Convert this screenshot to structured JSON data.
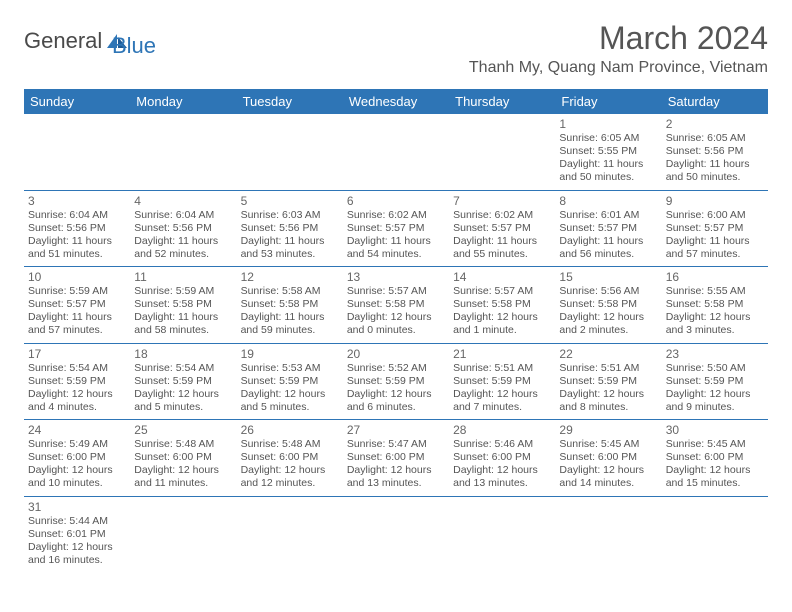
{
  "logo": {
    "general": "General",
    "blue": "Blue"
  },
  "title": "March 2024",
  "location": "Thanh My, Quang Nam Province, Vietnam",
  "colors": {
    "header_bg": "#2e75b6",
    "header_text": "#ffffff",
    "border": "#2e75b6",
    "text": "#555555",
    "logo_blue": "#2e75b6",
    "logo_gray": "#4a4a4a"
  },
  "day_headers": [
    "Sunday",
    "Monday",
    "Tuesday",
    "Wednesday",
    "Thursday",
    "Friday",
    "Saturday"
  ],
  "weeks": [
    [
      null,
      null,
      null,
      null,
      null,
      {
        "n": "1",
        "sr": "Sunrise: 6:05 AM",
        "ss": "Sunset: 5:55 PM",
        "d1": "Daylight: 11 hours",
        "d2": "and 50 minutes."
      },
      {
        "n": "2",
        "sr": "Sunrise: 6:05 AM",
        "ss": "Sunset: 5:56 PM",
        "d1": "Daylight: 11 hours",
        "d2": "and 50 minutes."
      }
    ],
    [
      {
        "n": "3",
        "sr": "Sunrise: 6:04 AM",
        "ss": "Sunset: 5:56 PM",
        "d1": "Daylight: 11 hours",
        "d2": "and 51 minutes."
      },
      {
        "n": "4",
        "sr": "Sunrise: 6:04 AM",
        "ss": "Sunset: 5:56 PM",
        "d1": "Daylight: 11 hours",
        "d2": "and 52 minutes."
      },
      {
        "n": "5",
        "sr": "Sunrise: 6:03 AM",
        "ss": "Sunset: 5:56 PM",
        "d1": "Daylight: 11 hours",
        "d2": "and 53 minutes."
      },
      {
        "n": "6",
        "sr": "Sunrise: 6:02 AM",
        "ss": "Sunset: 5:57 PM",
        "d1": "Daylight: 11 hours",
        "d2": "and 54 minutes."
      },
      {
        "n": "7",
        "sr": "Sunrise: 6:02 AM",
        "ss": "Sunset: 5:57 PM",
        "d1": "Daylight: 11 hours",
        "d2": "and 55 minutes."
      },
      {
        "n": "8",
        "sr": "Sunrise: 6:01 AM",
        "ss": "Sunset: 5:57 PM",
        "d1": "Daylight: 11 hours",
        "d2": "and 56 minutes."
      },
      {
        "n": "9",
        "sr": "Sunrise: 6:00 AM",
        "ss": "Sunset: 5:57 PM",
        "d1": "Daylight: 11 hours",
        "d2": "and 57 minutes."
      }
    ],
    [
      {
        "n": "10",
        "sr": "Sunrise: 5:59 AM",
        "ss": "Sunset: 5:57 PM",
        "d1": "Daylight: 11 hours",
        "d2": "and 57 minutes."
      },
      {
        "n": "11",
        "sr": "Sunrise: 5:59 AM",
        "ss": "Sunset: 5:58 PM",
        "d1": "Daylight: 11 hours",
        "d2": "and 58 minutes."
      },
      {
        "n": "12",
        "sr": "Sunrise: 5:58 AM",
        "ss": "Sunset: 5:58 PM",
        "d1": "Daylight: 11 hours",
        "d2": "and 59 minutes."
      },
      {
        "n": "13",
        "sr": "Sunrise: 5:57 AM",
        "ss": "Sunset: 5:58 PM",
        "d1": "Daylight: 12 hours",
        "d2": "and 0 minutes."
      },
      {
        "n": "14",
        "sr": "Sunrise: 5:57 AM",
        "ss": "Sunset: 5:58 PM",
        "d1": "Daylight: 12 hours",
        "d2": "and 1 minute."
      },
      {
        "n": "15",
        "sr": "Sunrise: 5:56 AM",
        "ss": "Sunset: 5:58 PM",
        "d1": "Daylight: 12 hours",
        "d2": "and 2 minutes."
      },
      {
        "n": "16",
        "sr": "Sunrise: 5:55 AM",
        "ss": "Sunset: 5:58 PM",
        "d1": "Daylight: 12 hours",
        "d2": "and 3 minutes."
      }
    ],
    [
      {
        "n": "17",
        "sr": "Sunrise: 5:54 AM",
        "ss": "Sunset: 5:59 PM",
        "d1": "Daylight: 12 hours",
        "d2": "and 4 minutes."
      },
      {
        "n": "18",
        "sr": "Sunrise: 5:54 AM",
        "ss": "Sunset: 5:59 PM",
        "d1": "Daylight: 12 hours",
        "d2": "and 5 minutes."
      },
      {
        "n": "19",
        "sr": "Sunrise: 5:53 AM",
        "ss": "Sunset: 5:59 PM",
        "d1": "Daylight: 12 hours",
        "d2": "and 5 minutes."
      },
      {
        "n": "20",
        "sr": "Sunrise: 5:52 AM",
        "ss": "Sunset: 5:59 PM",
        "d1": "Daylight: 12 hours",
        "d2": "and 6 minutes."
      },
      {
        "n": "21",
        "sr": "Sunrise: 5:51 AM",
        "ss": "Sunset: 5:59 PM",
        "d1": "Daylight: 12 hours",
        "d2": "and 7 minutes."
      },
      {
        "n": "22",
        "sr": "Sunrise: 5:51 AM",
        "ss": "Sunset: 5:59 PM",
        "d1": "Daylight: 12 hours",
        "d2": "and 8 minutes."
      },
      {
        "n": "23",
        "sr": "Sunrise: 5:50 AM",
        "ss": "Sunset: 5:59 PM",
        "d1": "Daylight: 12 hours",
        "d2": "and 9 minutes."
      }
    ],
    [
      {
        "n": "24",
        "sr": "Sunrise: 5:49 AM",
        "ss": "Sunset: 6:00 PM",
        "d1": "Daylight: 12 hours",
        "d2": "and 10 minutes."
      },
      {
        "n": "25",
        "sr": "Sunrise: 5:48 AM",
        "ss": "Sunset: 6:00 PM",
        "d1": "Daylight: 12 hours",
        "d2": "and 11 minutes."
      },
      {
        "n": "26",
        "sr": "Sunrise: 5:48 AM",
        "ss": "Sunset: 6:00 PM",
        "d1": "Daylight: 12 hours",
        "d2": "and 12 minutes."
      },
      {
        "n": "27",
        "sr": "Sunrise: 5:47 AM",
        "ss": "Sunset: 6:00 PM",
        "d1": "Daylight: 12 hours",
        "d2": "and 13 minutes."
      },
      {
        "n": "28",
        "sr": "Sunrise: 5:46 AM",
        "ss": "Sunset: 6:00 PM",
        "d1": "Daylight: 12 hours",
        "d2": "and 13 minutes."
      },
      {
        "n": "29",
        "sr": "Sunrise: 5:45 AM",
        "ss": "Sunset: 6:00 PM",
        "d1": "Daylight: 12 hours",
        "d2": "and 14 minutes."
      },
      {
        "n": "30",
        "sr": "Sunrise: 5:45 AM",
        "ss": "Sunset: 6:00 PM",
        "d1": "Daylight: 12 hours",
        "d2": "and 15 minutes."
      }
    ],
    [
      {
        "n": "31",
        "sr": "Sunrise: 5:44 AM",
        "ss": "Sunset: 6:01 PM",
        "d1": "Daylight: 12 hours",
        "d2": "and 16 minutes."
      },
      null,
      null,
      null,
      null,
      null,
      null
    ]
  ]
}
